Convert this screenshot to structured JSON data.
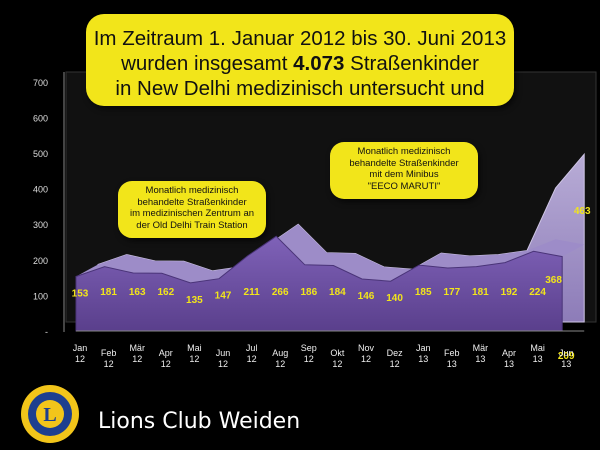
{
  "headline": {
    "line1": "Im Zeitraum 1. Januar 2012 bis 30. Juni 2013",
    "line2_pre": "wurden insgesamt ",
    "line2_bold": "4.073",
    "line2_post": " Straßenkinder",
    "line3": "in New Delhi medizinisch untersucht und"
  },
  "callouts": {
    "left": [
      "Monatlich medizinisch",
      "behandelte Straßenkinder",
      "im medizinischen Zentrum an",
      "der Old Delhi Train Station"
    ],
    "right": [
      "Monatlich medizinisch",
      "behandelte Straßenkinder",
      "mit dem Minibus",
      "\"EECO MARUTI\""
    ]
  },
  "footer": {
    "name": "Lions Club Weiden",
    "logo_text": "LIONS"
  },
  "colors": {
    "background": "#000000",
    "callout": "#f2e51a",
    "front_series": "#6b4ea0",
    "back_series": "#a99bc9",
    "labels": "#f2e51a"
  },
  "chart_data": {
    "type": "area",
    "title": "",
    "categories": [
      "Jan 12",
      "Feb 12",
      "Mär 12",
      "Apr 12",
      "Mai 12",
      "Jun 12",
      "Jul 12",
      "Aug 12",
      "Sep 12",
      "Okt 12",
      "Nov 12",
      "Dez 12",
      "Jan 13",
      "Feb 13",
      "Mär 13",
      "Apr 13",
      "Mai 13",
      "Jun 13"
    ],
    "ylim": [
      0,
      700
    ],
    "yticks": [
      "-",
      "100",
      "200",
      "300",
      "400",
      "500",
      "600",
      "700"
    ],
    "series": [
      {
        "values": [
          153,
          181,
          163,
          162,
          135,
          147,
          211,
          266,
          186,
          184,
          146,
          140,
          185,
          177,
          181,
          192,
          224,
          209
        ]
      },
      {
        "values": [
          null,
          null,
          null,
          null,
          null,
          null,
          null,
          null,
          null,
          null,
          null,
          null,
          null,
          null,
          null,
          null,
          368,
          463
        ]
      }
    ],
    "grid": false,
    "legend": "none"
  }
}
